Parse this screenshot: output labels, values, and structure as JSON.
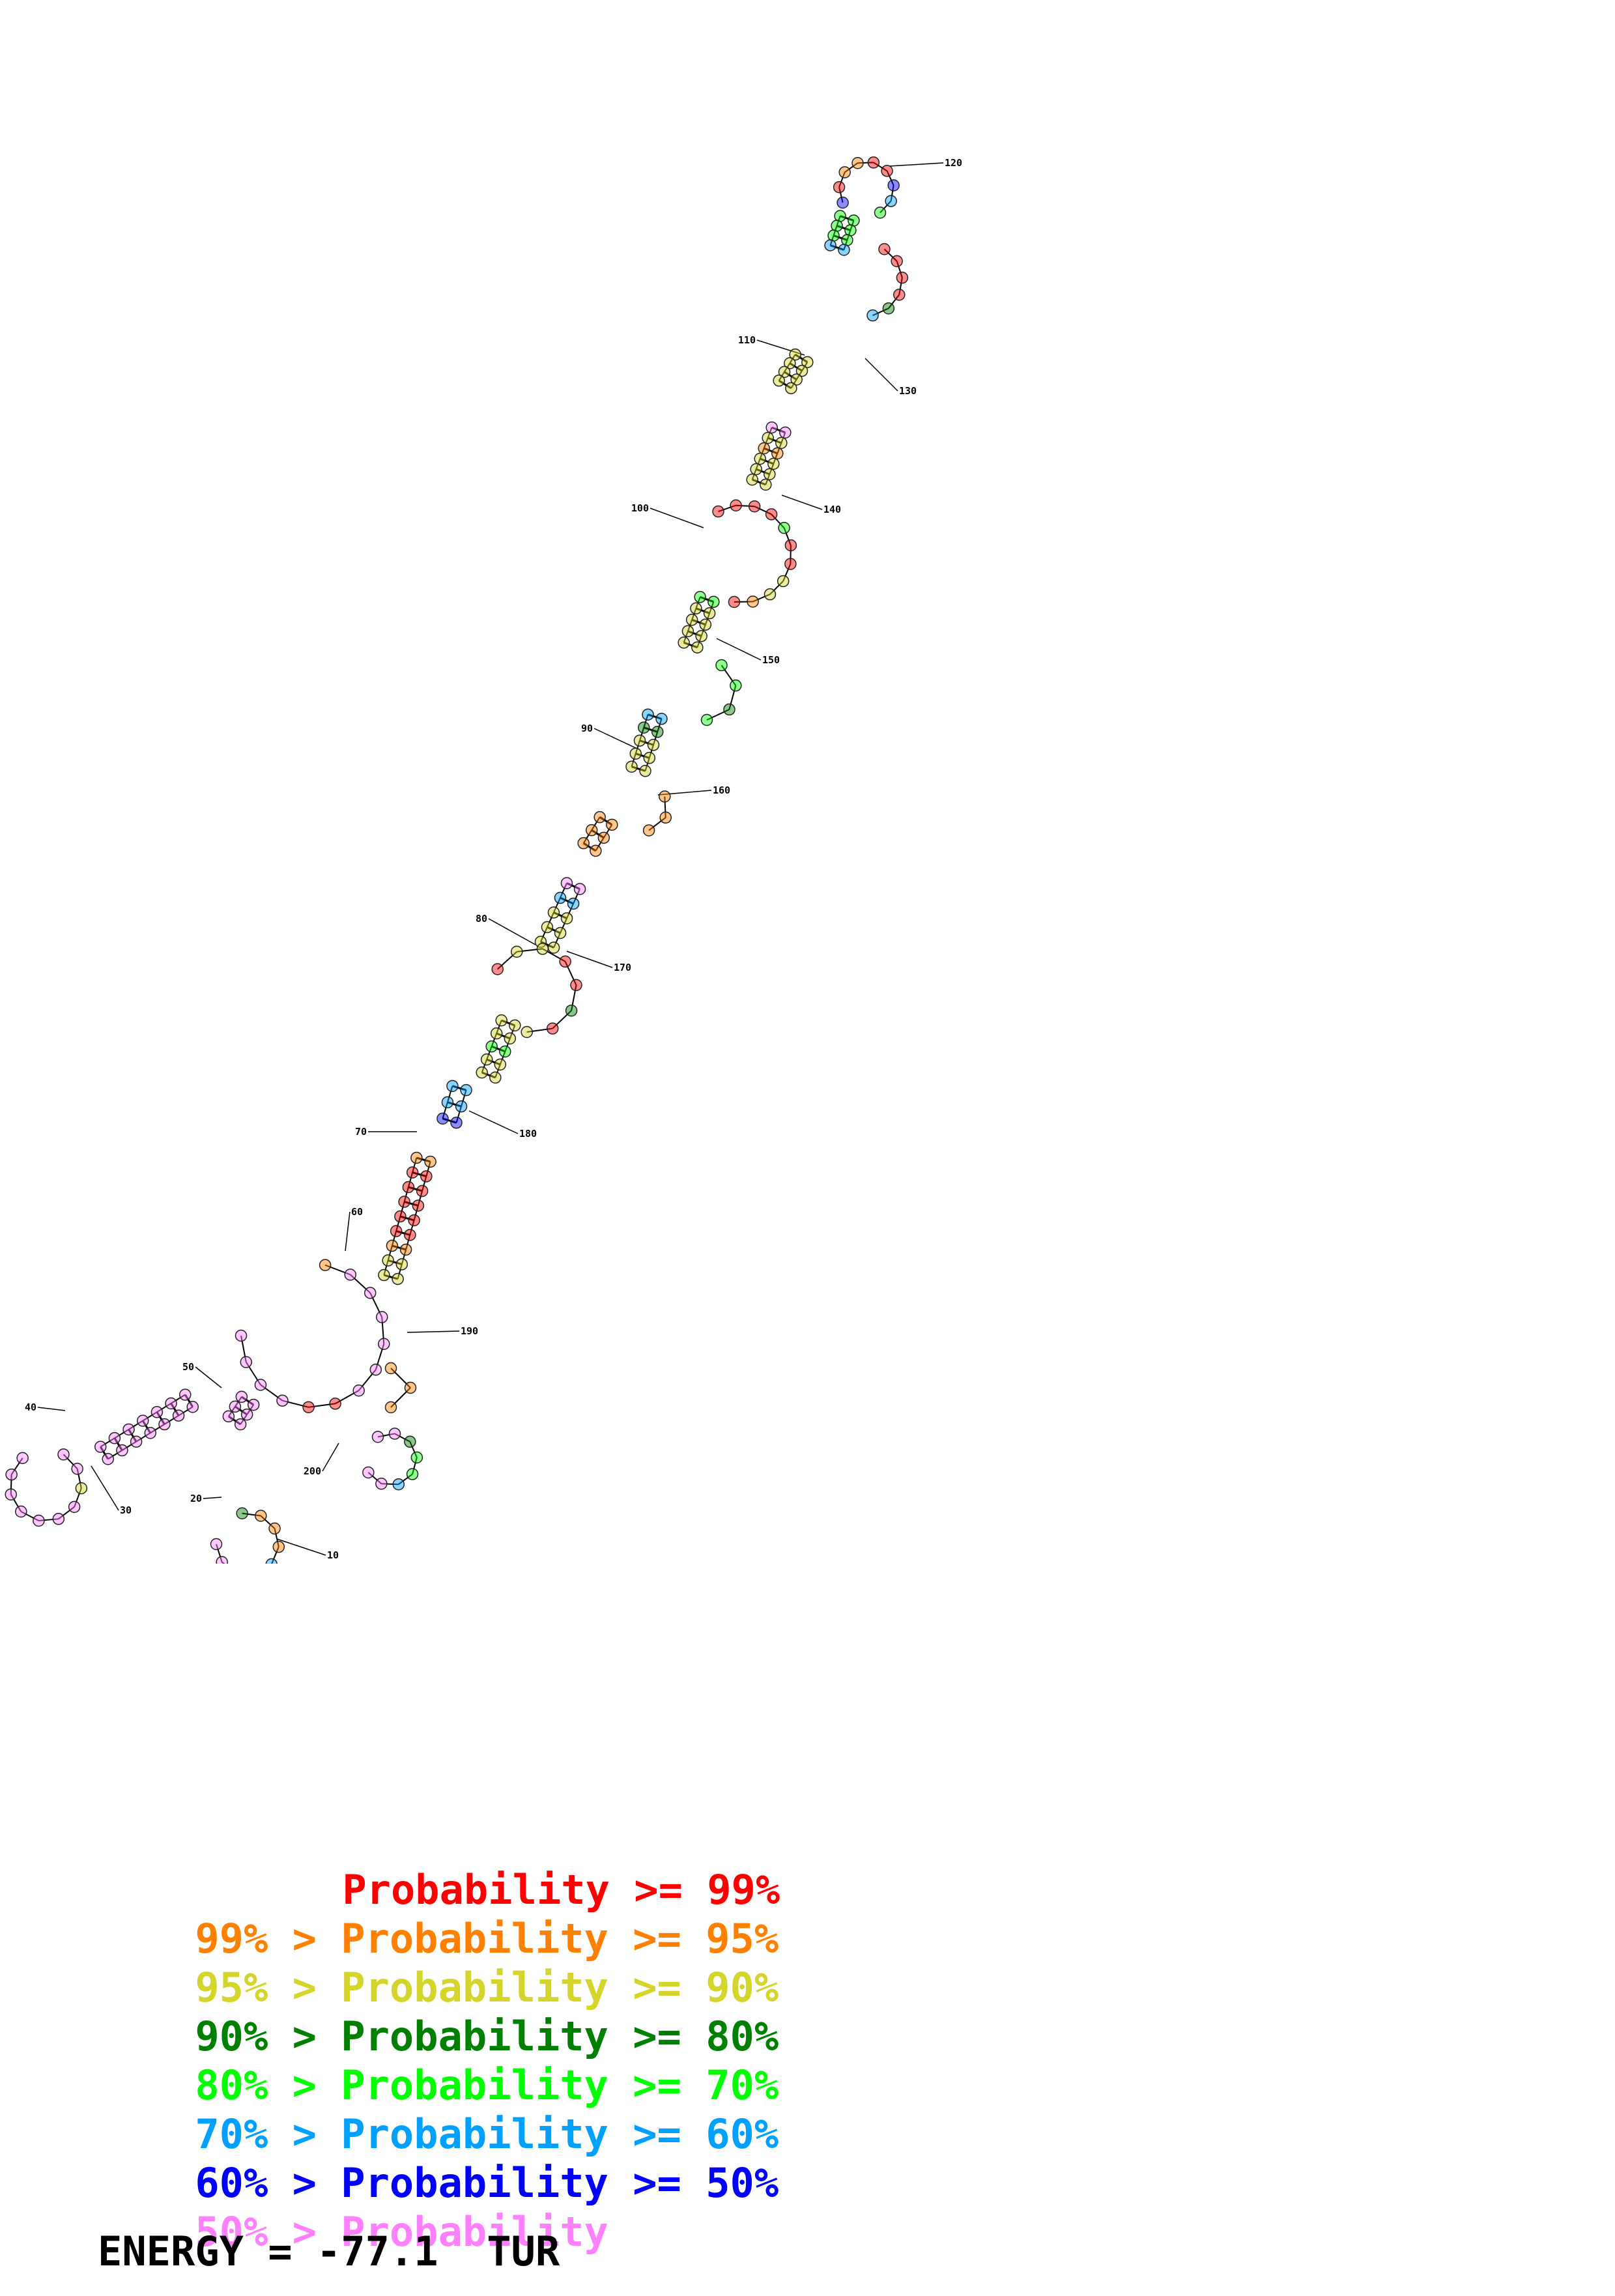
{
  "colors": {
    "p99": "#ff0000",
    "p95": "#ff8000",
    "p90": "#d4d42a",
    "p80": "#008000",
    "p70": "#00ff00",
    "p60": "#00a0ff",
    "p50": "#0000ff",
    "plow": "#ff80ff"
  },
  "position_labels": [
    "10",
    "20",
    "30",
    "40",
    "50",
    "60",
    "70",
    "80",
    "90",
    "100",
    "110",
    "120",
    "130",
    "140",
    "150",
    "160",
    "170",
    "180",
    "190",
    "200"
  ],
  "legend": [
    {
      "prefix": "",
      "label": "Probability",
      "suffix": ">= 99%",
      "color": "#ff0000"
    },
    {
      "prefix": "99% >",
      "label": "Probability",
      "suffix": ">= 95%",
      "color": "#ff8000"
    },
    {
      "prefix": "95% >",
      "label": "Probability",
      "suffix": ">= 90%",
      "color": "#d4d42a"
    },
    {
      "prefix": "90% >",
      "label": "Probability",
      "suffix": ">= 80%",
      "color": "#008000"
    },
    {
      "prefix": "80% >",
      "label": "Probability",
      "suffix": ">= 70%",
      "color": "#00ff00"
    },
    {
      "prefix": "70% >",
      "label": "Probability",
      "suffix": ">= 60%",
      "color": "#00a0ff"
    },
    {
      "prefix": "60% >",
      "label": "Probability",
      "suffix": ">= 50%",
      "color": "#0000ff"
    },
    {
      "prefix": "50% >",
      "label": "Probability",
      "suffix": "",
      "color": "#ff80ff"
    }
  ],
  "energy": "ENERGY = -77.1  TUR"
}
